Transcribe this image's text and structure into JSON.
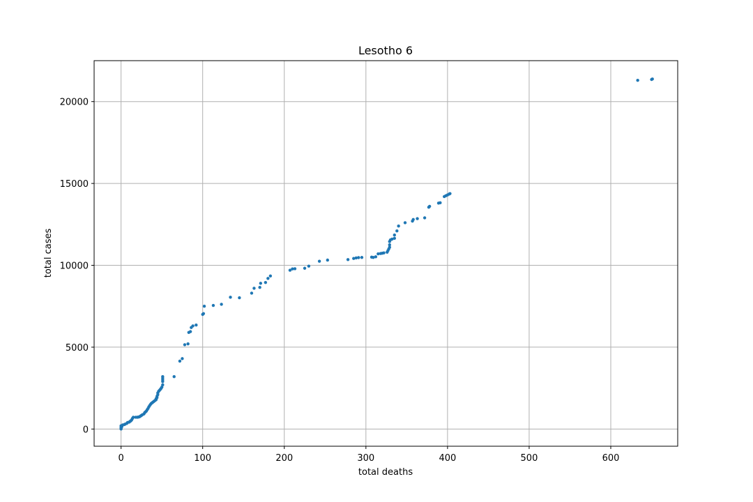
{
  "chart_data": {
    "type": "scatter",
    "title": "Lesotho 6",
    "xlabel": "total deaths",
    "ylabel": "total cases",
    "xlim": [
      -33,
      682
    ],
    "ylim": [
      -1050,
      22500
    ],
    "xticks": [
      0,
      100,
      200,
      300,
      400,
      500,
      600
    ],
    "yticks": [
      0,
      5000,
      10000,
      15000,
      20000
    ],
    "grid": true,
    "marker_color": "#1f77b4",
    "points": [
      [
        0,
        0
      ],
      [
        0,
        20
      ],
      [
        0,
        60
      ],
      [
        0,
        120
      ],
      [
        0,
        200
      ],
      [
        1,
        150
      ],
      [
        2,
        250
      ],
      [
        4,
        270
      ],
      [
        5,
        300
      ],
      [
        7,
        340
      ],
      [
        8,
        400
      ],
      [
        10,
        420
      ],
      [
        11,
        470
      ],
      [
        12,
        500
      ],
      [
        13,
        560
      ],
      [
        14,
        650
      ],
      [
        15,
        720
      ],
      [
        18,
        720
      ],
      [
        20,
        720
      ],
      [
        21,
        730
      ],
      [
        22,
        740
      ],
      [
        23,
        760
      ],
      [
        24,
        800
      ],
      [
        25,
        830
      ],
      [
        26,
        870
      ],
      [
        28,
        920
      ],
      [
        29,
        1000
      ],
      [
        30,
        1050
      ],
      [
        31,
        1100
      ],
      [
        32,
        1180
      ],
      [
        33,
        1250
      ],
      [
        34,
        1350
      ],
      [
        35,
        1430
      ],
      [
        36,
        1500
      ],
      [
        37,
        1560
      ],
      [
        38,
        1600
      ],
      [
        39,
        1640
      ],
      [
        40,
        1680
      ],
      [
        41,
        1720
      ],
      [
        42,
        1760
      ],
      [
        43,
        1800
      ],
      [
        43,
        1860
      ],
      [
        44,
        1920
      ],
      [
        44,
        2000
      ],
      [
        45,
        2100
      ],
      [
        45,
        2200
      ],
      [
        46,
        2300
      ],
      [
        47,
        2360
      ],
      [
        48,
        2420
      ],
      [
        49,
        2480
      ],
      [
        50,
        2560
      ],
      [
        51,
        2700
      ],
      [
        51,
        2900
      ],
      [
        51,
        3000
      ],
      [
        51,
        3100
      ],
      [
        51,
        3200
      ],
      [
        65,
        3200
      ],
      [
        72,
        4150
      ],
      [
        75,
        4300
      ],
      [
        78,
        5150
      ],
      [
        82,
        5200
      ],
      [
        83,
        5900
      ],
      [
        85,
        5950
      ],
      [
        86,
        6200
      ],
      [
        88,
        6300
      ],
      [
        92,
        6350
      ],
      [
        100,
        7000
      ],
      [
        101,
        7050
      ],
      [
        102,
        7500
      ],
      [
        113,
        7550
      ],
      [
        123,
        7620
      ],
      [
        134,
        8050
      ],
      [
        145,
        8020
      ],
      [
        160,
        8300
      ],
      [
        163,
        8600
      ],
      [
        170,
        8650
      ],
      [
        171,
        8900
      ],
      [
        177,
        8950
      ],
      [
        180,
        9200
      ],
      [
        183,
        9350
      ],
      [
        207,
        9700
      ],
      [
        210,
        9780
      ],
      [
        213,
        9790
      ],
      [
        225,
        9820
      ],
      [
        230,
        9950
      ],
      [
        243,
        10250
      ],
      [
        253,
        10320
      ],
      [
        278,
        10350
      ],
      [
        285,
        10420
      ],
      [
        288,
        10450
      ],
      [
        291,
        10470
      ],
      [
        295,
        10480
      ],
      [
        307,
        10500
      ],
      [
        309,
        10480
      ],
      [
        312,
        10520
      ],
      [
        315,
        10700
      ],
      [
        318,
        10720
      ],
      [
        320,
        10740
      ],
      [
        322,
        10760
      ],
      [
        326,
        10800
      ],
      [
        327,
        10900
      ],
      [
        328,
        11000
      ],
      [
        329,
        11100
      ],
      [
        329,
        11250
      ],
      [
        329,
        11450
      ],
      [
        330,
        11550
      ],
      [
        332,
        11600
      ],
      [
        335,
        11650
      ],
      [
        335,
        11850
      ],
      [
        338,
        12100
      ],
      [
        340,
        12400
      ],
      [
        348,
        12600
      ],
      [
        357,
        12700
      ],
      [
        358,
        12800
      ],
      [
        363,
        12850
      ],
      [
        372,
        12900
      ],
      [
        377,
        13550
      ],
      [
        378,
        13600
      ],
      [
        389,
        13800
      ],
      [
        391,
        13820
      ],
      [
        396,
        14200
      ],
      [
        398,
        14250
      ],
      [
        400,
        14300
      ],
      [
        402,
        14350
      ],
      [
        403,
        14380
      ],
      [
        633,
        21300
      ],
      [
        650,
        21350
      ],
      [
        651,
        21380
      ]
    ]
  }
}
